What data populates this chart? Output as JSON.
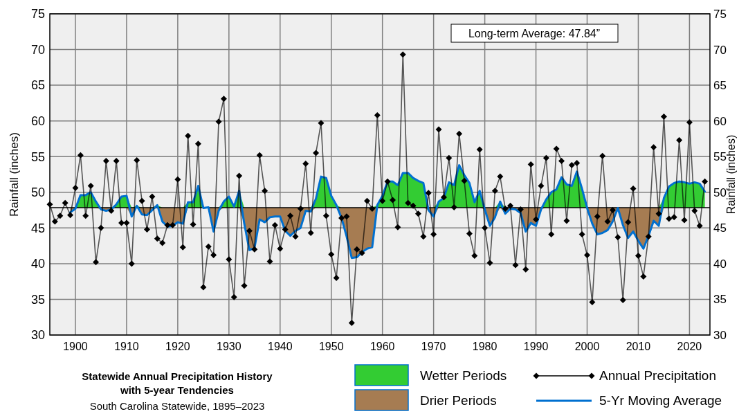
{
  "chart_data": {
    "type": "line",
    "title": "Statewide Annual Precipitation History with 5-year Tendencies",
    "subtitle": "South Carolina Statewide, 1895–2023",
    "ylabel": "Rainfall (inches)",
    "y2label": "Rainfall (inches)",
    "x": [
      1895,
      1896,
      1897,
      1898,
      1899,
      1900,
      1901,
      1902,
      1903,
      1904,
      1905,
      1906,
      1907,
      1908,
      1909,
      1910,
      1911,
      1912,
      1913,
      1914,
      1915,
      1916,
      1917,
      1918,
      1919,
      1920,
      1921,
      1922,
      1923,
      1924,
      1925,
      1926,
      1927,
      1928,
      1929,
      1930,
      1931,
      1932,
      1933,
      1934,
      1935,
      1936,
      1937,
      1938,
      1939,
      1940,
      1941,
      1942,
      1943,
      1944,
      1945,
      1946,
      1947,
      1948,
      1949,
      1950,
      1951,
      1952,
      1953,
      1954,
      1955,
      1956,
      1957,
      1958,
      1959,
      1960,
      1961,
      1962,
      1963,
      1964,
      1965,
      1966,
      1967,
      1968,
      1969,
      1970,
      1971,
      1972,
      1973,
      1974,
      1975,
      1976,
      1977,
      1978,
      1979,
      1980,
      1981,
      1982,
      1983,
      1984,
      1985,
      1986,
      1987,
      1988,
      1989,
      1990,
      1991,
      1992,
      1993,
      1994,
      1995,
      1996,
      1997,
      1998,
      1999,
      2000,
      2001,
      2002,
      2003,
      2004,
      2005,
      2006,
      2007,
      2008,
      2009,
      2010,
      2011,
      2012,
      2013,
      2014,
      2015,
      2016,
      2017,
      2018,
      2019,
      2020,
      2021,
      2022,
      2023
    ],
    "xlim": [
      1895,
      2024
    ],
    "xticks": [
      1900,
      1910,
      1920,
      1930,
      1940,
      1950,
      1960,
      1970,
      1980,
      1990,
      2000,
      2010,
      2020
    ],
    "ylim": [
      30,
      75
    ],
    "yticks": [
      30,
      35,
      40,
      45,
      50,
      55,
      60,
      65,
      70,
      75
    ],
    "y2lim": [
      30,
      75
    ],
    "y2ticks": [
      30,
      35,
      40,
      45,
      50,
      55,
      60,
      65,
      70,
      75
    ],
    "grid": true,
    "legend": "bottom",
    "annotations": [
      "Long-term Average: 47.84”"
    ],
    "ref_lines": [
      {
        "axis": "y",
        "value": 47.84,
        "color": "#000000"
      }
    ],
    "series": [
      {
        "name": "Wetter Periods",
        "type": "area",
        "color": "#33cc33",
        "values": [
          null,
          null,
          null,
          null,
          null,
          47.84,
          49.6,
          49.6,
          50.0,
          48.7,
          47.84,
          null,
          47.84,
          48.3,
          49.4,
          49.5,
          47.84,
          48.1,
          47.84,
          null,
          47.84,
          48.2,
          47.84,
          null,
          null,
          null,
          47.84,
          48.6,
          48.6,
          50.9,
          47.84,
          47.9,
          47.84,
          47.84,
          48.7,
          49.4,
          48.0,
          50.2,
          47.84,
          null,
          null,
          null,
          null,
          null,
          null,
          null,
          null,
          null,
          null,
          null,
          null,
          47.84,
          49.1,
          52.2,
          52.0,
          49.5,
          48.2,
          47.84,
          null,
          null,
          null,
          null,
          null,
          47.84,
          48.2,
          49.5,
          51.5,
          51.5,
          51.0,
          52.7,
          52.7,
          52.0,
          51.6,
          51.3,
          47.84,
          47.84,
          48.7,
          49.2,
          51.4,
          51.0,
          53.8,
          52.4,
          51.3,
          48.6,
          50.2,
          47.84,
          null,
          47.84,
          48.7,
          47.84,
          null,
          null,
          null,
          null,
          null,
          null,
          47.84,
          49.0,
          50.0,
          50.4,
          52.1,
          51.1,
          50.9,
          52.9,
          50.5,
          47.84,
          null,
          null,
          null,
          null,
          null,
          null,
          null,
          null,
          null,
          null,
          null,
          null,
          null,
          47.84,
          49.2,
          50.8,
          51.3,
          51.5,
          51.4,
          51.2,
          51.4,
          51.2,
          50.1
        ]
      },
      {
        "name": "Drier Periods",
        "type": "area",
        "color": "#a67c52",
        "values": [
          null,
          null,
          null,
          null,
          47.2,
          47.7,
          47.84,
          null,
          null,
          47.84,
          47.6,
          47.4,
          47.6,
          47.84,
          null,
          47.84,
          46.6,
          47.84,
          46.9,
          46.8,
          47.5,
          47.84,
          45.9,
          45.2,
          45.3,
          45.8,
          45.6,
          47.84,
          null,
          47.84,
          47.8,
          47.84,
          44.5,
          47.4,
          47.84,
          null,
          null,
          47.84,
          45.6,
          41.9,
          42.2,
          46.2,
          45.8,
          46.5,
          46.6,
          46.6,
          44.6,
          43.9,
          44.6,
          45.0,
          47.4,
          47.3,
          47.84,
          null,
          null,
          null,
          47.84,
          46.4,
          43.8,
          40.8,
          40.9,
          41.6,
          42.1,
          42.3,
          47.84,
          null,
          null,
          null,
          null,
          null,
          null,
          null,
          null,
          47.84,
          47.5,
          46.6,
          47.84,
          null,
          null,
          null,
          null,
          null,
          null,
          null,
          47.84,
          47.6,
          45.3,
          46.5,
          47.84,
          47.0,
          47.7,
          47.6,
          47.1,
          44.5,
          45.7,
          45.3,
          47.6,
          47.84,
          null,
          null,
          null,
          null,
          null,
          null,
          47.84,
          47.8,
          45.6,
          44.1,
          44.3,
          44.7,
          45.9,
          47.8,
          45.4,
          43.6,
          44.5,
          43.2,
          42.1,
          43.9,
          46.0,
          45.3,
          47.84,
          null,
          null,
          null,
          null,
          null,
          null,
          null,
          null
        ]
      },
      {
        "name": "Annual Precipitation",
        "type": "line",
        "color": "#000000",
        "marker": "diamond",
        "values": [
          48.3,
          45.9,
          46.7,
          48.5,
          46.8,
          50.6,
          55.2,
          46.7,
          50.9,
          40.2,
          45.0,
          54.4,
          47.4,
          54.4,
          45.7,
          45.7,
          40.0,
          54.5,
          48.8,
          44.8,
          49.4,
          43.5,
          42.9,
          45.4,
          45.4,
          51.8,
          42.3,
          57.9,
          45.5,
          56.8,
          36.7,
          42.4,
          41.2,
          59.9,
          63.1,
          40.6,
          35.3,
          52.3,
          36.9,
          44.6,
          42.0,
          55.2,
          50.2,
          40.3,
          45.4,
          42.1,
          44.8,
          46.7,
          43.8,
          47.7,
          54.0,
          44.3,
          55.5,
          59.7,
          46.7,
          41.3,
          38.0,
          46.4,
          46.6,
          31.7,
          42.0,
          41.5,
          48.8,
          47.7,
          60.8,
          48.8,
          51.5,
          48.9,
          45.1,
          69.3,
          48.5,
          48.1,
          47.0,
          43.8,
          49.9,
          44.1,
          58.8,
          49.3,
          54.8,
          47.9,
          58.2,
          51.6,
          44.2,
          41.1,
          56.0,
          45.0,
          40.1,
          50.2,
          52.2,
          47.7,
          48.1,
          39.8,
          47.6,
          39.2,
          53.9,
          46.2,
          50.9,
          54.8,
          44.1,
          56.1,
          54.4,
          46.0,
          53.8,
          54.1,
          44.1,
          41.2,
          34.6,
          46.6,
          55.1,
          45.9,
          47.5,
          43.7,
          34.9,
          45.8,
          50.5,
          41.1,
          38.2,
          43.8,
          56.3,
          47.0,
          60.6,
          46.3,
          46.5,
          57.3,
          46.1,
          59.8,
          47.4,
          45.3,
          51.5
        ]
      },
      {
        "name": "5-Yr Moving Average",
        "type": "line",
        "color": "#0070d0",
        "marker": "none",
        "values": [
          null,
          null,
          null,
          null,
          47.2,
          47.7,
          49.6,
          49.6,
          50.0,
          48.7,
          47.6,
          47.4,
          47.6,
          48.3,
          49.4,
          49.5,
          46.6,
          48.1,
          46.9,
          46.8,
          47.5,
          48.2,
          45.9,
          45.2,
          45.3,
          45.8,
          45.6,
          48.6,
          48.6,
          50.9,
          47.8,
          47.9,
          44.5,
          47.4,
          48.7,
          49.4,
          48.0,
          50.2,
          45.6,
          41.9,
          42.2,
          46.2,
          45.8,
          46.5,
          46.6,
          46.6,
          44.6,
          43.9,
          44.6,
          45.0,
          47.4,
          47.3,
          49.1,
          52.2,
          52.0,
          49.5,
          48.2,
          46.4,
          43.8,
          40.8,
          40.9,
          41.6,
          42.1,
          42.3,
          48.2,
          49.5,
          51.5,
          51.5,
          51.0,
          52.7,
          52.7,
          52.0,
          51.6,
          51.3,
          47.5,
          46.6,
          48.7,
          49.2,
          51.4,
          51.0,
          53.8,
          52.4,
          51.3,
          48.6,
          50.2,
          47.6,
          45.3,
          46.5,
          48.7,
          47.0,
          47.7,
          47.6,
          47.1,
          44.5,
          45.7,
          45.3,
          47.6,
          49.0,
          50.0,
          50.4,
          52.1,
          51.1,
          50.9,
          52.9,
          50.5,
          47.8,
          45.6,
          44.1,
          44.3,
          44.7,
          45.9,
          47.8,
          45.4,
          43.6,
          44.5,
          43.2,
          42.1,
          43.9,
          46.0,
          45.3,
          49.2,
          50.8,
          51.3,
          51.5,
          51.4,
          51.2,
          51.4,
          51.2,
          50.1
        ]
      }
    ]
  }
}
